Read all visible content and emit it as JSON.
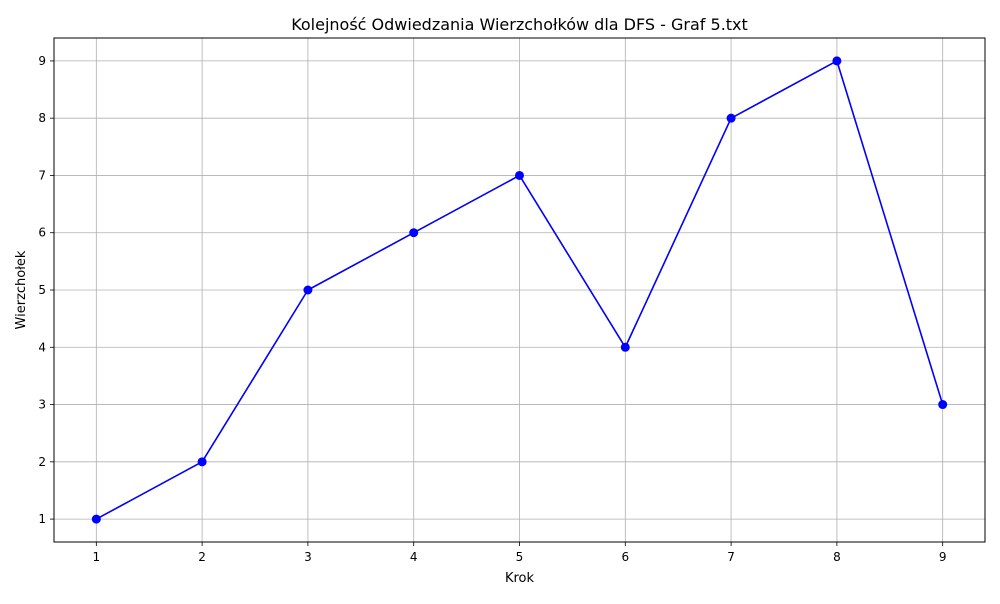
{
  "chart_data": {
    "type": "line",
    "title": "Kolejność Odwiedzania Wierzchołków dla DFS - Graf 5.txt",
    "xlabel": "Krok",
    "ylabel": "Wierzchołek",
    "x": [
      1,
      2,
      3,
      4,
      5,
      6,
      7,
      8,
      9
    ],
    "series": [
      {
        "values": [
          1,
          2,
          5,
          6,
          7,
          4,
          8,
          9,
          3
        ],
        "color": "#0000ff",
        "marker": "circle"
      }
    ],
    "xticks": [
      1,
      2,
      3,
      4,
      5,
      6,
      7,
      8,
      9
    ],
    "yticks": [
      1,
      2,
      3,
      4,
      5,
      6,
      7,
      8,
      9
    ],
    "xlim": [
      0.6,
      9.4
    ],
    "ylim": [
      0.6,
      9.4
    ],
    "grid": true,
    "grid_color": "#b0b0b0"
  }
}
